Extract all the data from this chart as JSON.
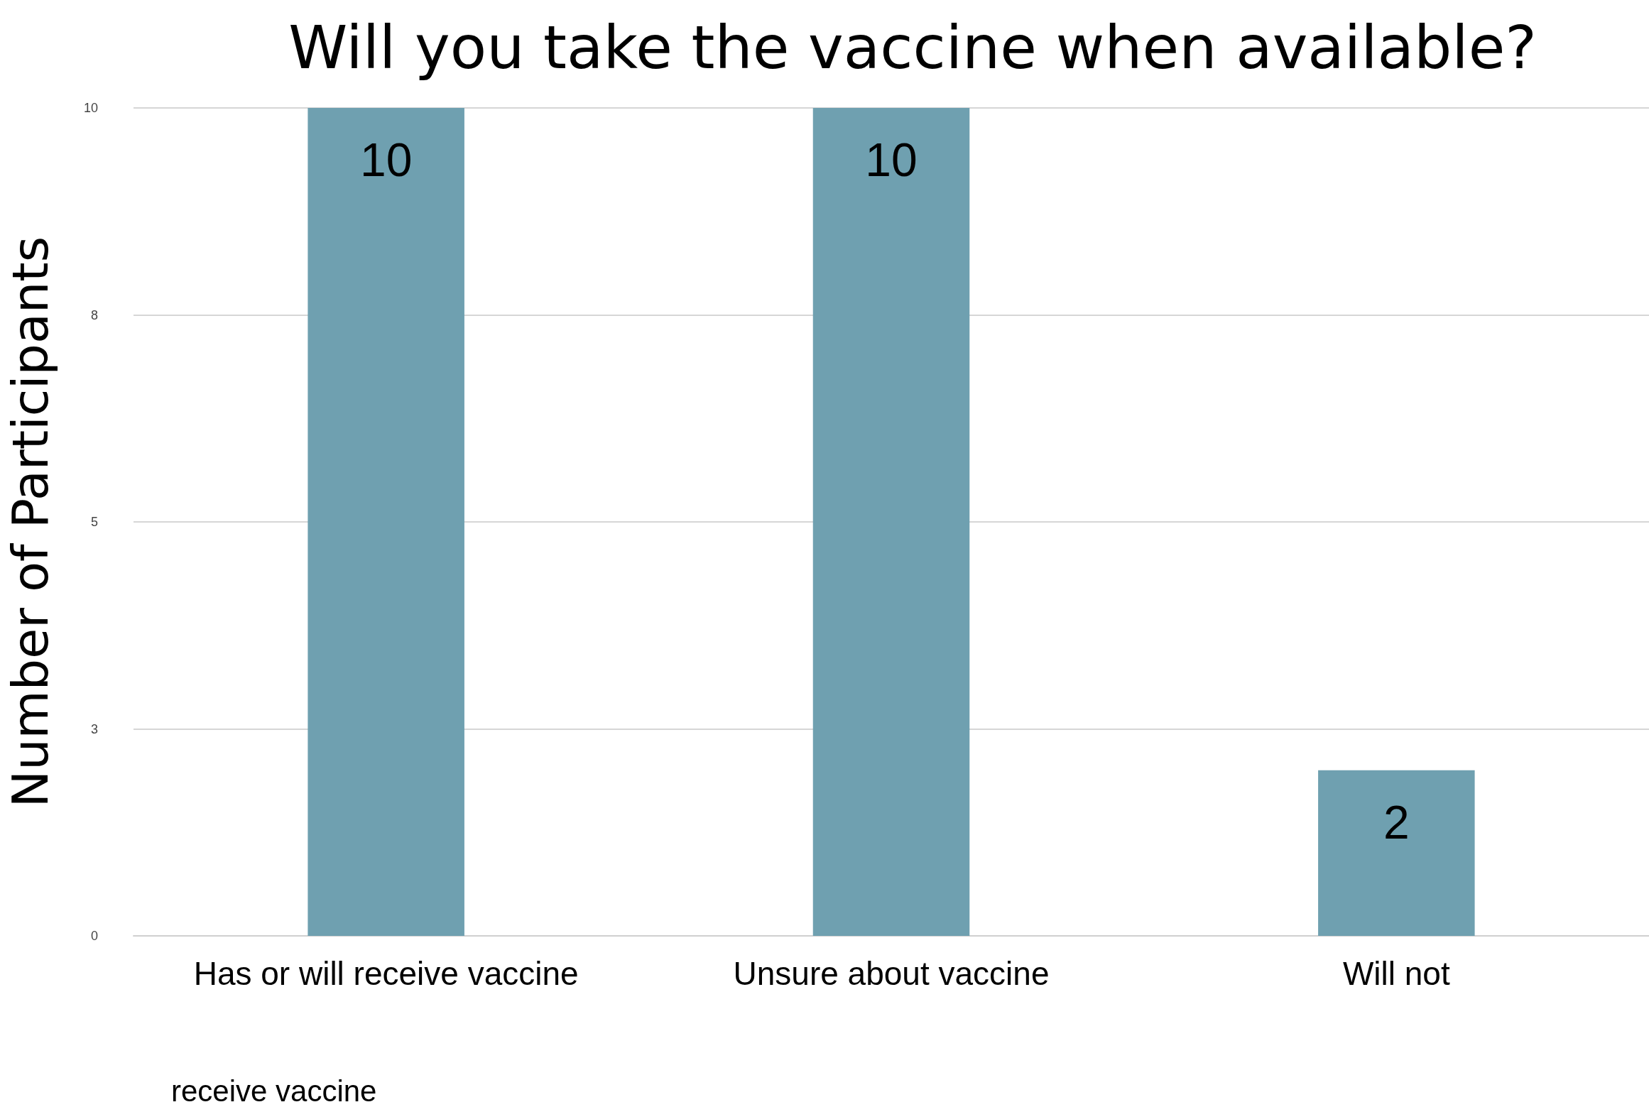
{
  "chart_data": {
    "type": "bar",
    "title": "Will you take the vaccine when available?",
    "ylabel": "Number of Participants",
    "categories": [
      "Has or will receive vaccine",
      "Unsure about vaccine",
      "Will not"
    ],
    "values": [
      10,
      10,
      2
    ],
    "color": "#6fa0b0",
    "ylim": [
      0,
      10
    ],
    "yticks": [
      0,
      {
        "value": 2.5,
        "label": "3"
      },
      5,
      {
        "value": 7.5,
        "label": "8"
      },
      10
    ],
    "grid": true,
    "data_labels": true,
    "annotations": [
      "receive vaccine"
    ]
  }
}
